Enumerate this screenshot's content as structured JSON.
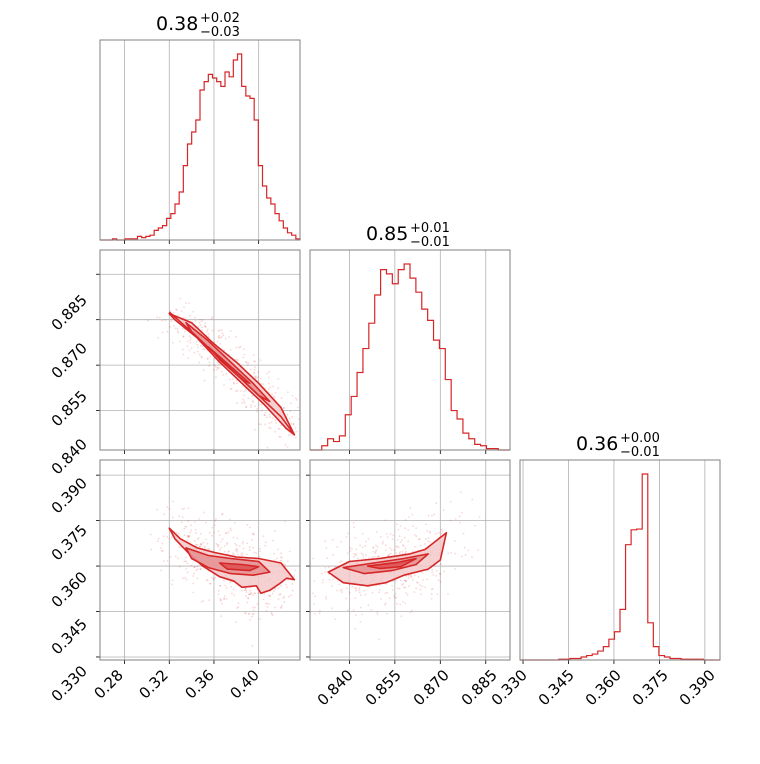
{
  "colors": {
    "series": "#d62728",
    "fill_light": "#f4c9ca",
    "fill_dark": "#e58f90",
    "grid": "#b0b0b0",
    "frame": "#808080"
  },
  "chart_data": {
    "type": "corner",
    "grid": true,
    "parameters": [
      {
        "median": "0.38",
        "upper": "+0.02",
        "lower": "−0.03",
        "range": [
          0.258,
          0.437
        ]
      },
      {
        "median": "0.85",
        "upper": "+0.01",
        "lower": "−0.01",
        "range": [
          0.827,
          0.893
        ]
      },
      {
        "median": "0.36",
        "upper": "+0.00",
        "lower": "−0.01",
        "range": [
          0.329,
          0.395
        ]
      }
    ],
    "ticks": {
      "p0": [
        "0.28",
        "0.32",
        "0.36",
        "0.40"
      ],
      "p1": [
        "0.840",
        "0.855",
        "0.870",
        "0.885"
      ],
      "p2": [
        "0.330",
        "0.345",
        "0.360",
        "0.375",
        "0.390"
      ]
    },
    "tick_values": {
      "p0": [
        0.28,
        0.32,
        0.36,
        0.4
      ],
      "p1": [
        0.84,
        0.855,
        0.87,
        0.885
      ],
      "p2": [
        0.33,
        0.345,
        0.36,
        0.375,
        0.39
      ]
    },
    "hist_p0": {
      "edges": [
        0.258,
        0.437
      ],
      "counts": [
        0,
        0,
        0,
        1,
        0,
        0,
        1,
        1,
        1,
        3,
        2,
        3,
        4,
        8,
        10,
        12,
        18,
        22,
        30,
        40,
        62,
        80,
        90,
        100,
        125,
        132,
        138,
        135,
        132,
        128,
        140,
        136,
        150,
        155,
        128,
        120,
        118,
        100,
        62,
        45,
        35,
        30,
        22,
        16,
        10,
        6,
        4,
        1
      ]
    },
    "hist_p1": {
      "edges": [
        0.827,
        0.893
      ],
      "counts": [
        0,
        0,
        3,
        8,
        6,
        10,
        25,
        38,
        55,
        72,
        90,
        110,
        128,
        125,
        118,
        128,
        132,
        122,
        112,
        100,
        92,
        78,
        72,
        50,
        28,
        22,
        12,
        8,
        4,
        3,
        1,
        1,
        0,
        0
      ]
    },
    "hist_p2": {
      "edges": [
        0.329,
        0.395
      ],
      "counts": [
        0,
        0,
        0,
        0,
        0,
        0,
        0,
        1,
        1,
        2,
        2,
        4,
        6,
        8,
        12,
        18,
        28,
        38,
        68,
        155,
        175,
        176,
        250,
        50,
        18,
        6,
        4,
        2,
        2,
        1,
        1,
        1,
        1,
        0,
        0,
        0
      ]
    },
    "joint_p0_p1": {
      "ridge": [
        [
          0.32,
          0.8725
        ],
        [
          0.34,
          0.866
        ],
        [
          0.36,
          0.859
        ],
        [
          0.38,
          0.852
        ],
        [
          0.4,
          0.845
        ],
        [
          0.42,
          0.838
        ],
        [
          0.432,
          0.832
        ]
      ],
      "contours": [
        [
          [
            0.32,
            0.872
          ],
          [
            0.34,
            0.869
          ],
          [
            0.36,
            0.862
          ],
          [
            0.38,
            0.856
          ],
          [
            0.4,
            0.849
          ],
          [
            0.42,
            0.841
          ],
          [
            0.432,
            0.832
          ],
          [
            0.425,
            0.834
          ],
          [
            0.405,
            0.842
          ],
          [
            0.385,
            0.849
          ],
          [
            0.365,
            0.856
          ],
          [
            0.345,
            0.864
          ],
          [
            0.325,
            0.87
          ]
        ],
        [
          [
            0.335,
            0.869
          ],
          [
            0.355,
            0.863
          ],
          [
            0.375,
            0.856
          ],
          [
            0.395,
            0.849
          ],
          [
            0.41,
            0.843
          ],
          [
            0.4,
            0.845
          ],
          [
            0.38,
            0.852
          ],
          [
            0.36,
            0.859
          ],
          [
            0.34,
            0.866
          ]
        ],
        [
          [
            0.355,
            0.861
          ],
          [
            0.372,
            0.8555
          ],
          [
            0.392,
            0.849
          ],
          [
            0.386,
            0.85
          ],
          [
            0.366,
            0.8565
          ]
        ]
      ]
    },
    "joint_p0_p2": {
      "contours": [
        [
          [
            0.32,
            0.3725
          ],
          [
            0.33,
            0.369
          ],
          [
            0.345,
            0.366
          ],
          [
            0.36,
            0.3645
          ],
          [
            0.38,
            0.363
          ],
          [
            0.4,
            0.3625
          ],
          [
            0.42,
            0.361
          ],
          [
            0.432,
            0.3555
          ],
          [
            0.425,
            0.356
          ],
          [
            0.418,
            0.354
          ],
          [
            0.41,
            0.352
          ],
          [
            0.402,
            0.351
          ],
          [
            0.398,
            0.3535
          ],
          [
            0.385,
            0.353
          ],
          [
            0.378,
            0.355
          ],
          [
            0.365,
            0.3565
          ],
          [
            0.35,
            0.36
          ],
          [
            0.338,
            0.364
          ],
          [
            0.325,
            0.369
          ]
        ],
        [
          [
            0.335,
            0.366
          ],
          [
            0.355,
            0.3635
          ],
          [
            0.375,
            0.3625
          ],
          [
            0.4,
            0.3615
          ],
          [
            0.41,
            0.358
          ],
          [
            0.395,
            0.357
          ],
          [
            0.375,
            0.3575
          ],
          [
            0.355,
            0.3595
          ],
          [
            0.34,
            0.3625
          ]
        ],
        [
          [
            0.365,
            0.361
          ],
          [
            0.385,
            0.3605
          ],
          [
            0.4,
            0.3598
          ],
          [
            0.392,
            0.3585
          ],
          [
            0.372,
            0.359
          ]
        ]
      ]
    },
    "joint_p1_p2": {
      "contours": [
        [
          [
            0.833,
            0.358
          ],
          [
            0.84,
            0.3615
          ],
          [
            0.85,
            0.3625
          ],
          [
            0.86,
            0.364
          ],
          [
            0.865,
            0.3655
          ],
          [
            0.872,
            0.371
          ],
          [
            0.87,
            0.362
          ],
          [
            0.866,
            0.359
          ],
          [
            0.858,
            0.357
          ],
          [
            0.852,
            0.3545
          ],
          [
            0.846,
            0.3535
          ],
          [
            0.838,
            0.3545
          ]
        ],
        [
          [
            0.838,
            0.3595
          ],
          [
            0.848,
            0.361
          ],
          [
            0.858,
            0.3625
          ],
          [
            0.866,
            0.364
          ],
          [
            0.862,
            0.3605
          ],
          [
            0.854,
            0.3585
          ],
          [
            0.845,
            0.3575
          ]
        ],
        [
          [
            0.846,
            0.36
          ],
          [
            0.856,
            0.3612
          ],
          [
            0.862,
            0.3625
          ],
          [
            0.857,
            0.3598
          ],
          [
            0.85,
            0.3592
          ]
        ]
      ]
    }
  }
}
